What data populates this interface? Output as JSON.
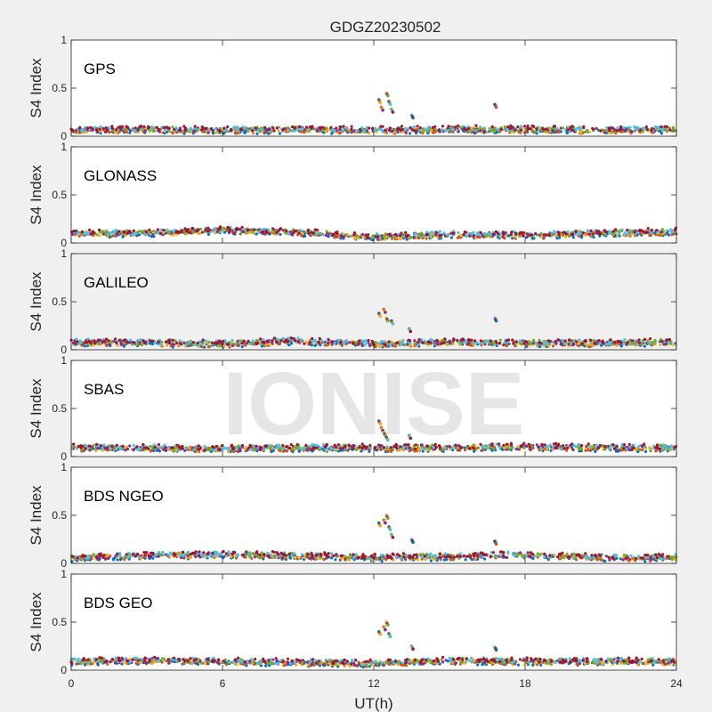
{
  "figure": {
    "title": "GDGZ20230502",
    "watermark": "IONISE",
    "background": "#f0f0f0",
    "axes_background": "#ffffff"
  },
  "chart_data": {
    "type": "scatter",
    "xlabel": "UT(h)",
    "ylabel": "S4 Index",
    "xlim": [
      0,
      24
    ],
    "ylim": [
      0,
      1
    ],
    "xticks": [
      0,
      6,
      12,
      18,
      24
    ],
    "yticks": [
      0,
      0.5,
      1
    ],
    "ytick_labels": [
      "0",
      "0.5",
      "1"
    ],
    "grid": false,
    "legend": "none",
    "series_colors": [
      "#0072bd",
      "#d95319",
      "#edb120",
      "#7e2f8e",
      "#77ac30",
      "#4dbeee",
      "#a2142f"
    ],
    "panels": [
      {
        "name": "GPS",
        "background": "#ffffff",
        "baseline": [
          [
            0,
            0.06
          ],
          [
            3,
            0.07
          ],
          [
            6,
            0.06
          ],
          [
            9,
            0.07
          ],
          [
            12,
            0.06
          ],
          [
            15,
            0.07
          ],
          [
            18,
            0.07
          ],
          [
            21,
            0.06
          ],
          [
            24,
            0.07
          ]
        ],
        "spikes": [
          [
            12.2,
            0.38
          ],
          [
            12.3,
            0.3
          ],
          [
            12.5,
            0.45
          ],
          [
            12.6,
            0.36
          ],
          [
            12.7,
            0.28
          ],
          [
            13.5,
            0.22
          ],
          [
            16.8,
            0.33
          ]
        ]
      },
      {
        "name": "GLONASS",
        "background": "#ffffff",
        "baseline": [
          [
            0,
            0.1
          ],
          [
            3,
            0.1
          ],
          [
            6,
            0.13
          ],
          [
            9,
            0.11
          ],
          [
            12,
            0.06
          ],
          [
            15,
            0.09
          ],
          [
            18,
            0.08
          ],
          [
            21,
            0.1
          ],
          [
            24,
            0.12
          ]
        ],
        "spikes": []
      },
      {
        "name": "GALILEO",
        "background": "#f0f0f0",
        "baseline": [
          [
            0,
            0.08
          ],
          [
            3,
            0.07
          ],
          [
            6,
            0.06
          ],
          [
            9,
            0.09
          ],
          [
            12,
            0.06
          ],
          [
            15,
            0.08
          ],
          [
            18,
            0.07
          ],
          [
            21,
            0.07
          ],
          [
            24,
            0.08
          ]
        ],
        "spikes": [
          [
            12.2,
            0.38
          ],
          [
            12.4,
            0.42
          ],
          [
            12.5,
            0.33
          ],
          [
            12.7,
            0.3
          ],
          [
            13.4,
            0.22
          ],
          [
            16.8,
            0.33
          ]
        ]
      },
      {
        "name": "SBAS",
        "background": "#ffffff",
        "baseline": [
          [
            0,
            0.09
          ],
          [
            3,
            0.09
          ],
          [
            6,
            0.08
          ],
          [
            9,
            0.09
          ],
          [
            12,
            0.09
          ],
          [
            15,
            0.09
          ],
          [
            18,
            0.1
          ],
          [
            21,
            0.09
          ],
          [
            24,
            0.09
          ]
        ],
        "spikes": [
          [
            12.2,
            0.37
          ],
          [
            12.3,
            0.3
          ],
          [
            12.4,
            0.25
          ],
          [
            12.5,
            0.2
          ],
          [
            13.4,
            0.22
          ]
        ]
      },
      {
        "name": "BDS NGEO",
        "background": "#ffffff",
        "baseline": [
          [
            0,
            0.06
          ],
          [
            3,
            0.08
          ],
          [
            6,
            0.09
          ],
          [
            9,
            0.08
          ],
          [
            12,
            0.06
          ],
          [
            15,
            0.07
          ],
          [
            18,
            0.09
          ],
          [
            21,
            0.06
          ],
          [
            24,
            0.06
          ]
        ],
        "spikes": [
          [
            12.2,
            0.42
          ],
          [
            12.4,
            0.45
          ],
          [
            12.5,
            0.5
          ],
          [
            12.6,
            0.38
          ],
          [
            12.7,
            0.3
          ],
          [
            13.5,
            0.25
          ],
          [
            16.8,
            0.23
          ]
        ]
      },
      {
        "name": "BDS GEO",
        "background": "#ffffff",
        "baseline": [
          [
            0,
            0.09
          ],
          [
            3,
            0.1
          ],
          [
            6,
            0.09
          ],
          [
            9,
            0.08
          ],
          [
            12,
            0.07
          ],
          [
            15,
            0.1
          ],
          [
            18,
            0.09
          ],
          [
            21,
            0.09
          ],
          [
            24,
            0.09
          ]
        ],
        "spikes": [
          [
            12.2,
            0.4
          ],
          [
            12.4,
            0.45
          ],
          [
            12.5,
            0.5
          ],
          [
            12.6,
            0.38
          ],
          [
            13.5,
            0.25
          ],
          [
            16.8,
            0.24
          ]
        ]
      }
    ]
  }
}
